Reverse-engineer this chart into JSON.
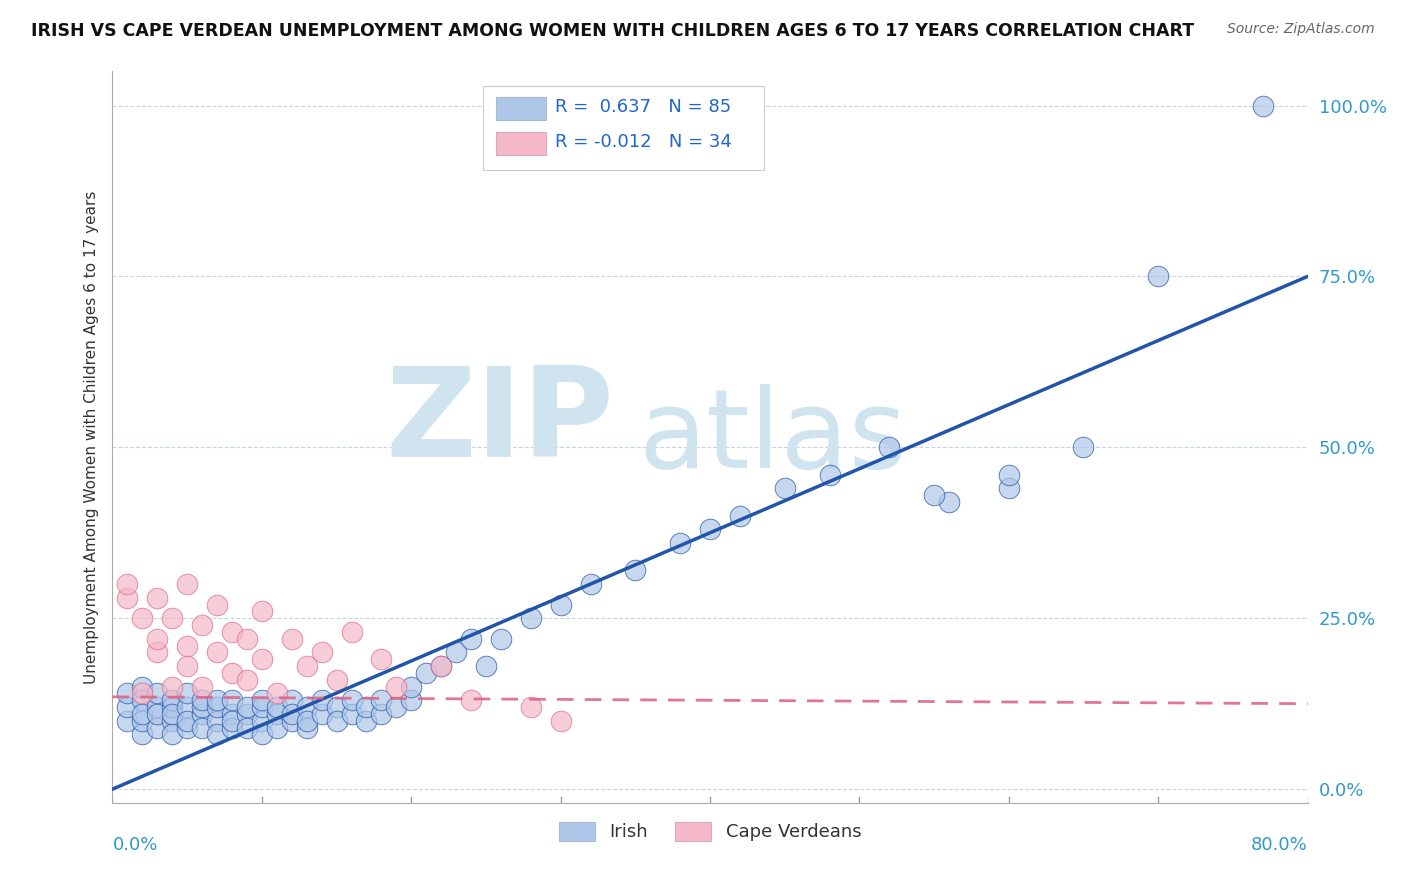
{
  "title": "IRISH VS CAPE VERDEAN UNEMPLOYMENT AMONG WOMEN WITH CHILDREN AGES 6 TO 17 YEARS CORRELATION CHART",
  "source": "Source: ZipAtlas.com",
  "ylabel": "Unemployment Among Women with Children Ages 6 to 17 years",
  "xlim": [
    0.0,
    0.8
  ],
  "ylim": [
    -0.02,
    1.05
  ],
  "yticks": [
    0.0,
    0.25,
    0.5,
    0.75,
    1.0
  ],
  "ytick_labels": [
    "0.0%",
    "25.0%",
    "50.0%",
    "75.0%",
    "100.0%"
  ],
  "irish_R": 0.637,
  "irish_N": 85,
  "cape_R": -0.012,
  "cape_N": 34,
  "irish_color": "#aec6e8",
  "cape_color": "#f5b8c8",
  "irish_line_color": "#2255aa",
  "cape_line_color": "#dd6688",
  "watermark_zip": "ZIP",
  "watermark_atlas": "atlas",
  "watermark_color": "#d0e4f0",
  "background_color": "#ffffff",
  "irish_line_x0": 0.0,
  "irish_line_y0": 0.0,
  "irish_line_x1": 0.8,
  "irish_line_y1": 0.75,
  "cape_line_x0": 0.0,
  "cape_line_y0": 0.135,
  "cape_line_x1": 0.8,
  "cape_line_y1": 0.125,
  "irish_x": [
    0.01,
    0.01,
    0.01,
    0.02,
    0.02,
    0.02,
    0.02,
    0.02,
    0.03,
    0.03,
    0.03,
    0.03,
    0.04,
    0.04,
    0.04,
    0.04,
    0.04,
    0.05,
    0.05,
    0.05,
    0.05,
    0.06,
    0.06,
    0.06,
    0.06,
    0.07,
    0.07,
    0.07,
    0.07,
    0.08,
    0.08,
    0.08,
    0.08,
    0.09,
    0.09,
    0.09,
    0.1,
    0.1,
    0.1,
    0.1,
    0.11,
    0.11,
    0.11,
    0.12,
    0.12,
    0.12,
    0.13,
    0.13,
    0.13,
    0.14,
    0.14,
    0.15,
    0.15,
    0.16,
    0.16,
    0.17,
    0.17,
    0.18,
    0.18,
    0.19,
    0.2,
    0.2,
    0.21,
    0.22,
    0.23,
    0.24,
    0.25,
    0.26,
    0.28,
    0.3,
    0.32,
    0.35,
    0.38,
    0.4,
    0.42,
    0.45,
    0.48,
    0.52,
    0.56,
    0.6,
    0.55,
    0.6,
    0.65,
    0.7,
    0.77
  ],
  "irish_y": [
    0.1,
    0.12,
    0.14,
    0.08,
    0.1,
    0.13,
    0.15,
    0.11,
    0.09,
    0.12,
    0.14,
    0.11,
    0.1,
    0.12,
    0.08,
    0.13,
    0.11,
    0.09,
    0.12,
    0.1,
    0.14,
    0.11,
    0.09,
    0.12,
    0.13,
    0.1,
    0.12,
    0.08,
    0.13,
    0.11,
    0.09,
    0.13,
    0.1,
    0.11,
    0.12,
    0.09,
    0.1,
    0.12,
    0.08,
    0.13,
    0.11,
    0.09,
    0.12,
    0.1,
    0.13,
    0.11,
    0.09,
    0.12,
    0.1,
    0.11,
    0.13,
    0.12,
    0.1,
    0.11,
    0.13,
    0.1,
    0.12,
    0.11,
    0.13,
    0.12,
    0.13,
    0.15,
    0.17,
    0.18,
    0.2,
    0.22,
    0.18,
    0.22,
    0.25,
    0.27,
    0.3,
    0.32,
    0.36,
    0.38,
    0.4,
    0.44,
    0.46,
    0.5,
    0.42,
    0.44,
    0.43,
    0.46,
    0.5,
    0.75,
    1.0
  ],
  "cape_x": [
    0.01,
    0.01,
    0.02,
    0.02,
    0.03,
    0.03,
    0.03,
    0.04,
    0.04,
    0.05,
    0.05,
    0.05,
    0.06,
    0.06,
    0.07,
    0.07,
    0.08,
    0.08,
    0.09,
    0.09,
    0.1,
    0.1,
    0.11,
    0.12,
    0.13,
    0.14,
    0.15,
    0.16,
    0.18,
    0.19,
    0.22,
    0.24,
    0.28,
    0.3
  ],
  "cape_y": [
    0.28,
    0.3,
    0.14,
    0.25,
    0.2,
    0.28,
    0.22,
    0.15,
    0.25,
    0.21,
    0.3,
    0.18,
    0.15,
    0.24,
    0.2,
    0.27,
    0.17,
    0.23,
    0.16,
    0.22,
    0.19,
    0.26,
    0.14,
    0.22,
    0.18,
    0.2,
    0.16,
    0.23,
    0.19,
    0.15,
    0.18,
    0.13,
    0.12,
    0.1
  ]
}
